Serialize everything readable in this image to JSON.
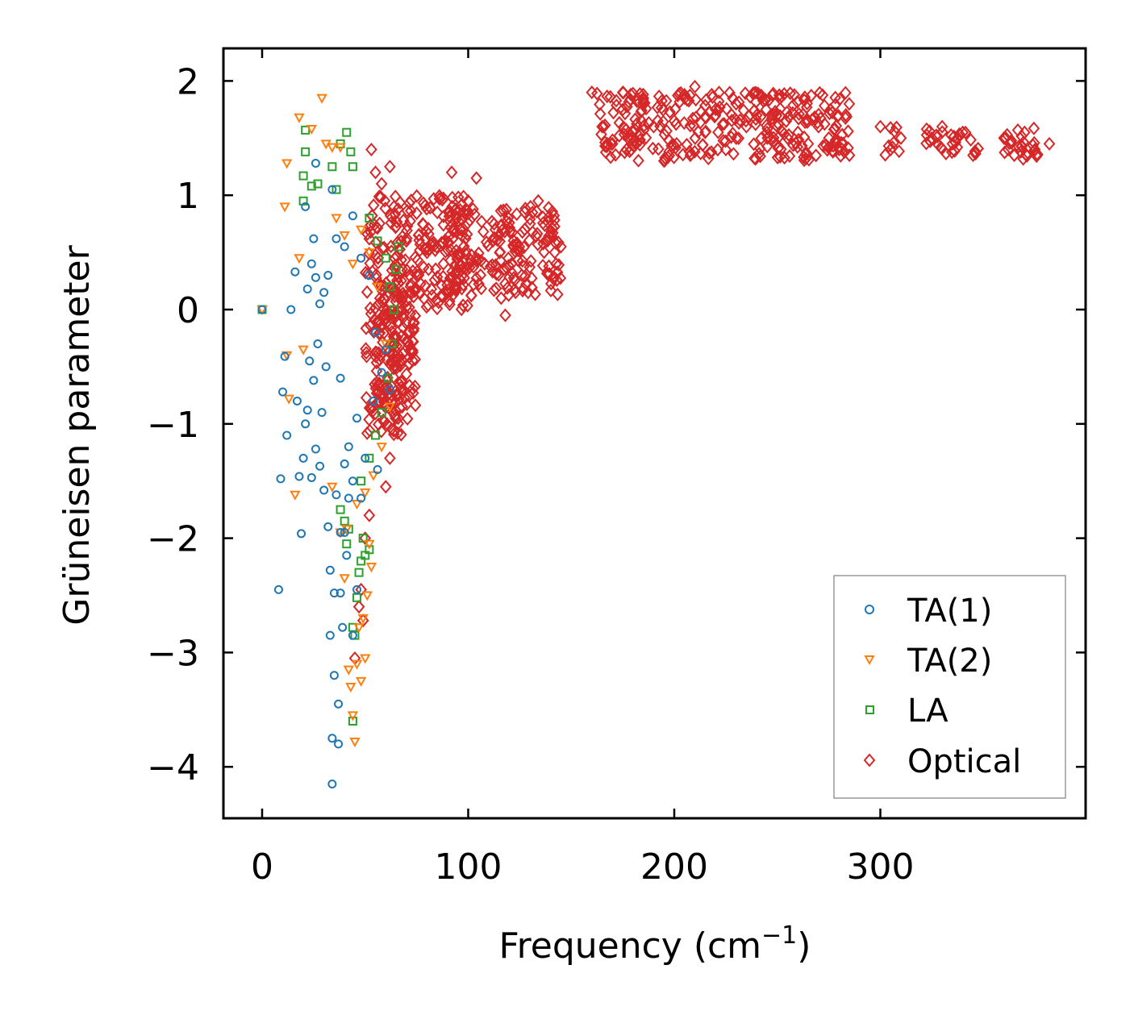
{
  "chart_data": {
    "type": "scatter",
    "title": "",
    "xlabel": "Frequency (cm",
    "xlabel_sup": "−1",
    "xlabel_close": ")",
    "ylabel": "Grüneisen parameter",
    "xlim": [
      -20,
      400
    ],
    "ylim": [
      -4.5,
      2.3
    ],
    "xticks": [
      0,
      100,
      200,
      300
    ],
    "xtick_labels": [
      "0",
      "100",
      "200",
      "300"
    ],
    "yticks": [
      2,
      1,
      0,
      -1,
      -2,
      -3,
      -4
    ],
    "ytick_labels": [
      "2",
      "1",
      "0",
      "−1",
      "−2",
      "−3",
      "−4"
    ],
    "legend_position": "lower-right",
    "grid": false,
    "series": [
      {
        "name": "TA(1)",
        "marker": "circle",
        "color": "#1f77b4",
        "points": [
          [
            0,
            0
          ],
          [
            8,
            -2.45
          ],
          [
            9,
            -1.48
          ],
          [
            10,
            -0.72
          ],
          [
            11,
            -0.41
          ],
          [
            12,
            -1.1
          ],
          [
            14,
            0.0
          ],
          [
            16,
            0.33
          ],
          [
            17,
            -0.8
          ],
          [
            18,
            -1.46
          ],
          [
            19,
            -1.96
          ],
          [
            20,
            -1.3
          ],
          [
            21,
            0.9
          ],
          [
            21,
            -1.0
          ],
          [
            22,
            0.18
          ],
          [
            22,
            -0.88
          ],
          [
            23,
            -0.45
          ],
          [
            24,
            0.4
          ],
          [
            24,
            -1.47
          ],
          [
            25,
            0.62
          ],
          [
            25,
            -0.62
          ],
          [
            26,
            0.28
          ],
          [
            26,
            -1.22
          ],
          [
            27,
            -0.3
          ],
          [
            28,
            -1.37
          ],
          [
            28,
            0.05
          ],
          [
            29,
            -0.9
          ],
          [
            30,
            -1.58
          ],
          [
            30,
            0.15
          ],
          [
            31,
            -0.5
          ],
          [
            32,
            -1.9
          ],
          [
            32,
            0.3
          ],
          [
            33,
            -2.28
          ],
          [
            33,
            -2.85
          ],
          [
            34,
            -3.75
          ],
          [
            34,
            -4.15
          ],
          [
            35,
            -3.2
          ],
          [
            35,
            -2.48
          ],
          [
            36,
            -1.62
          ],
          [
            37,
            -3.8
          ],
          [
            37,
            -3.45
          ],
          [
            38,
            -2.48
          ],
          [
            38,
            -1.95
          ],
          [
            39,
            -2.78
          ],
          [
            40,
            -1.95
          ],
          [
            41,
            -2.15
          ],
          [
            42,
            -1.65
          ],
          [
            44,
            -2.85
          ],
          [
            46,
            -2.45
          ],
          [
            26,
            1.28
          ],
          [
            34,
            1.05
          ],
          [
            36,
            0.62
          ],
          [
            40,
            0.55
          ],
          [
            44,
            0.82
          ],
          [
            48,
            0.45
          ],
          [
            52,
            0.3
          ],
          [
            55,
            -0.2
          ],
          [
            58,
            -0.55
          ],
          [
            60,
            -0.35
          ],
          [
            62,
            -0.7
          ],
          [
            38,
            -0.6
          ],
          [
            42,
            -1.2
          ],
          [
            46,
            -0.95
          ],
          [
            50,
            -1.3
          ],
          [
            54,
            -0.8
          ],
          [
            56,
            -1.4
          ],
          [
            40,
            -1.35
          ],
          [
            44,
            -1.5
          ],
          [
            48,
            -1.65
          ]
        ]
      },
      {
        "name": "TA(2)",
        "marker": "triangle-down",
        "color": "#ff7f0e",
        "points": [
          [
            0,
            0
          ],
          [
            11,
            0.9
          ],
          [
            12,
            1.28
          ],
          [
            12,
            -0.4
          ],
          [
            13,
            -0.78
          ],
          [
            16,
            -1.62
          ],
          [
            18,
            1.68
          ],
          [
            18,
            0.45
          ],
          [
            20,
            -0.35
          ],
          [
            24,
            1.58
          ],
          [
            29,
            1.85
          ],
          [
            31,
            1.45
          ],
          [
            34,
            1.42
          ],
          [
            34,
            -1.55
          ],
          [
            38,
            1.42
          ],
          [
            38,
            -1.95
          ],
          [
            40,
            -2.35
          ],
          [
            41,
            -1.92
          ],
          [
            42,
            -3.15
          ],
          [
            43,
            -3.3
          ],
          [
            44,
            -3.55
          ],
          [
            45,
            -3.78
          ],
          [
            46,
            -3.1
          ],
          [
            47,
            -2.78
          ],
          [
            48,
            -3.25
          ],
          [
            49,
            -2.7
          ],
          [
            50,
            -3.05
          ],
          [
            51,
            -2.5
          ],
          [
            52,
            -2.05
          ],
          [
            53,
            -2.25
          ],
          [
            36,
            0.8
          ],
          [
            40,
            0.65
          ],
          [
            44,
            0.4
          ],
          [
            48,
            0.7
          ],
          [
            52,
            0.5
          ],
          [
            56,
            0.2
          ],
          [
            60,
            -0.3
          ],
          [
            62,
            -0.85
          ],
          [
            58,
            -1.2
          ],
          [
            54,
            -1.45
          ],
          [
            50,
            -1.6
          ],
          [
            46,
            -1.7
          ]
        ]
      },
      {
        "name": "LA",
        "marker": "square",
        "color": "#2ca02c",
        "points": [
          [
            0,
            0
          ],
          [
            20,
            0.95
          ],
          [
            20,
            1.17
          ],
          [
            21,
            1.38
          ],
          [
            21,
            1.57
          ],
          [
            24,
            1.08
          ],
          [
            27,
            1.1
          ],
          [
            34,
            1.25
          ],
          [
            36,
            1.05
          ],
          [
            38,
            1.45
          ],
          [
            41,
            1.55
          ],
          [
            43,
            1.38
          ],
          [
            44,
            1.25
          ],
          [
            38,
            -1.75
          ],
          [
            40,
            -1.85
          ],
          [
            41,
            -2.05
          ],
          [
            42,
            -1.92
          ],
          [
            44,
            -2.78
          ],
          [
            45,
            -2.85
          ],
          [
            46,
            -2.52
          ],
          [
            47,
            -2.3
          ],
          [
            48,
            -2.2
          ],
          [
            49,
            -2.0
          ],
          [
            50,
            -2.15
          ],
          [
            52,
            -2.1
          ],
          [
            44,
            -3.6
          ],
          [
            52,
            0.8
          ],
          [
            56,
            0.6
          ],
          [
            60,
            0.45
          ],
          [
            62,
            0.2
          ],
          [
            64,
            0.0
          ],
          [
            66,
            0.55
          ],
          [
            65,
            0.35
          ],
          [
            63,
            -0.3
          ],
          [
            61,
            -0.6
          ],
          [
            58,
            -0.9
          ],
          [
            55,
            -1.1
          ],
          [
            52,
            -1.3
          ],
          [
            48,
            -1.5
          ]
        ]
      },
      {
        "name": "Optical",
        "marker": "diamond",
        "color": "#d62728",
        "points": [
          [
            45,
            -3.05
          ],
          [
            47,
            -2.6
          ],
          [
            48,
            -2.45
          ],
          [
            49,
            -2.72
          ],
          [
            50,
            -2.0
          ],
          [
            52,
            -1.8
          ],
          [
            53,
            1.4
          ],
          [
            55,
            1.2
          ],
          [
            58,
            1.1
          ],
          [
            60,
            -1.55
          ],
          [
            62,
            -1.3
          ],
          [
            62,
            1.25
          ],
          [
            64,
            0.9
          ],
          [
            66,
            -0.95
          ],
          [
            68,
            -0.85
          ],
          [
            70,
            0.6
          ],
          [
            72,
            0.2
          ],
          [
            75,
            0.3
          ],
          [
            78,
            0.75
          ],
          [
            80,
            0.5
          ],
          [
            85,
            0.85
          ],
          [
            88,
            0.4
          ],
          [
            92,
            1.2
          ],
          [
            96,
            0.7
          ],
          [
            100,
            0.95
          ],
          [
            104,
            1.15
          ],
          [
            108,
            0.4
          ],
          [
            112,
            0.6
          ],
          [
            116,
            0.1
          ],
          [
            118,
            -0.05
          ],
          [
            122,
            0.55
          ],
          [
            126,
            0.3
          ],
          [
            130,
            0.75
          ],
          [
            134,
            0.95
          ],
          [
            138,
            0.6
          ],
          [
            142,
            0.5
          ],
          [
            145,
            0.55
          ],
          [
            160,
            1.9
          ],
          [
            165,
            1.6
          ],
          [
            170,
            1.45
          ],
          [
            175,
            1.75
          ],
          [
            180,
            1.5
          ],
          [
            185,
            1.85
          ],
          [
            190,
            1.6
          ],
          [
            195,
            1.3
          ],
          [
            200,
            1.65
          ],
          [
            205,
            1.85
          ],
          [
            210,
            1.95
          ],
          [
            215,
            1.55
          ],
          [
            220,
            1.7
          ],
          [
            225,
            1.4
          ],
          [
            230,
            1.8
          ],
          [
            235,
            1.6
          ],
          [
            240,
            1.7
          ],
          [
            245,
            1.55
          ],
          [
            250,
            1.6
          ],
          [
            255,
            1.5
          ],
          [
            260,
            1.55
          ],
          [
            265,
            1.45
          ],
          [
            270,
            1.6
          ],
          [
            275,
            1.5
          ],
          [
            280,
            1.4
          ],
          [
            285,
            1.35
          ],
          [
            300,
            1.6
          ],
          [
            305,
            1.4
          ],
          [
            310,
            1.5
          ],
          [
            325,
            1.5
          ],
          [
            330,
            1.6
          ],
          [
            335,
            1.45
          ],
          [
            340,
            1.55
          ],
          [
            345,
            1.35
          ],
          [
            360,
            1.5
          ],
          [
            365,
            1.35
          ],
          [
            370,
            1.55
          ],
          [
            375,
            1.4
          ],
          [
            382,
            1.45
          ]
        ],
        "dense_regions": [
          {
            "x_range": [
              50,
              72
            ],
            "y_range": [
              -1.1,
              1.0
            ]
          },
          {
            "x_range": [
              70,
              100
            ],
            "y_range": [
              0.0,
              1.0
            ]
          },
          {
            "x_range": [
              90,
              145
            ],
            "y_range": [
              0.1,
              0.9
            ]
          },
          {
            "x_range": [
              55,
              75
            ],
            "y_range": [
              -0.9,
              0.2
            ]
          },
          {
            "x_range": [
              162,
              285
            ],
            "y_range": [
              1.3,
              1.9
            ]
          },
          {
            "x_range": [
              302,
              310
            ],
            "y_range": [
              1.35,
              1.6
            ]
          },
          {
            "x_range": [
              322,
              348
            ],
            "y_range": [
              1.35,
              1.6
            ]
          },
          {
            "x_range": [
              358,
              378
            ],
            "y_range": [
              1.3,
              1.6
            ]
          }
        ]
      }
    ]
  }
}
